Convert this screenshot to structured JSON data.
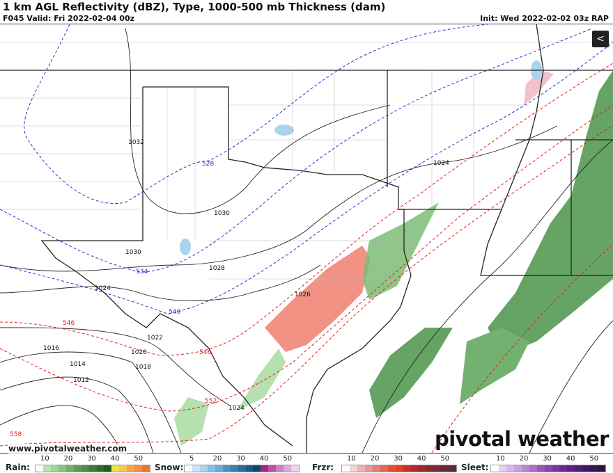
{
  "header": {
    "title": "1 km AGL Reflectivity (dBZ), Type, 1000-500 mb Thickness (dam)",
    "valid": "F045 Valid: Fri 2022-02-04 00z",
    "init": "Init: Wed 2022-02-02 03z RAP"
  },
  "share_icon": "share-icon",
  "website": "www.pivotalweather.com",
  "logo": "pivotal weather",
  "isobar_labels": [
    "1032",
    "1030",
    "1030",
    "1028",
    "1026",
    "1024",
    "1024",
    "1024",
    "1022",
    "1020",
    "1018",
    "1016",
    "1014",
    "1012"
  ],
  "thickness_labels": [
    "528",
    "534",
    "540",
    "546",
    "546",
    "552",
    "558"
  ],
  "colors": {
    "isobar": "#222222",
    "thickness_cold": "#2233cc",
    "thickness_warm": "#e02020",
    "rain": "#3c8c3c",
    "freezing_rain": "#ee7766",
    "snow": "#9cc8e8"
  },
  "legend": [
    {
      "label": "Rain:",
      "ticks": [
        "10",
        "20",
        "30",
        "40",
        "50"
      ],
      "colors": [
        "#ffffff",
        "#b8e2b0",
        "#a0d498",
        "#88c680",
        "#70b068",
        "#5a9c56",
        "#4a8c48",
        "#3a7c3a",
        "#2a6c2c",
        "#1c5c20",
        "#f0e040",
        "#f8c850",
        "#f8a840",
        "#f09040",
        "#e87830"
      ]
    },
    {
      "label": "Snow:",
      "ticks": [
        "5",
        "20",
        "30",
        "40",
        "50"
      ],
      "colors": [
        "#ffffff",
        "#c8e4f4",
        "#a8d4ee",
        "#88c0e4",
        "#68acd8",
        "#4a94c4",
        "#3880b0",
        "#286c9c",
        "#1c5884",
        "#10446c",
        "#a02880",
        "#c050a0",
        "#d080c0",
        "#e0a8d8",
        "#f0d0ec"
      ]
    },
    {
      "label": "Frzr:",
      "ticks": [
        "10",
        "20",
        "30",
        "40",
        "50"
      ],
      "colors": [
        "#ffffff",
        "#f8d0d8",
        "#f0b0b8",
        "#e89898",
        "#e08080",
        "#e06a5a",
        "#e05030",
        "#e04020",
        "#d03020",
        "#b82828",
        "#a02828",
        "#8a2830",
        "#782838",
        "#682838",
        "#5a2838"
      ]
    },
    {
      "label": "Sleet:",
      "ticks": [
        "10",
        "20",
        "30",
        "40",
        "50"
      ],
      "colors": [
        "#ffffff",
        "#e8d0f0",
        "#d8b8e8",
        "#c8a0e0",
        "#b888d4",
        "#a870c8",
        "#9858bc",
        "#8844b0",
        "#7a34a0",
        "#6c2890",
        "#5e2080",
        "#501a70",
        "#441860",
        "#381450",
        "#2c1040"
      ]
    }
  ]
}
